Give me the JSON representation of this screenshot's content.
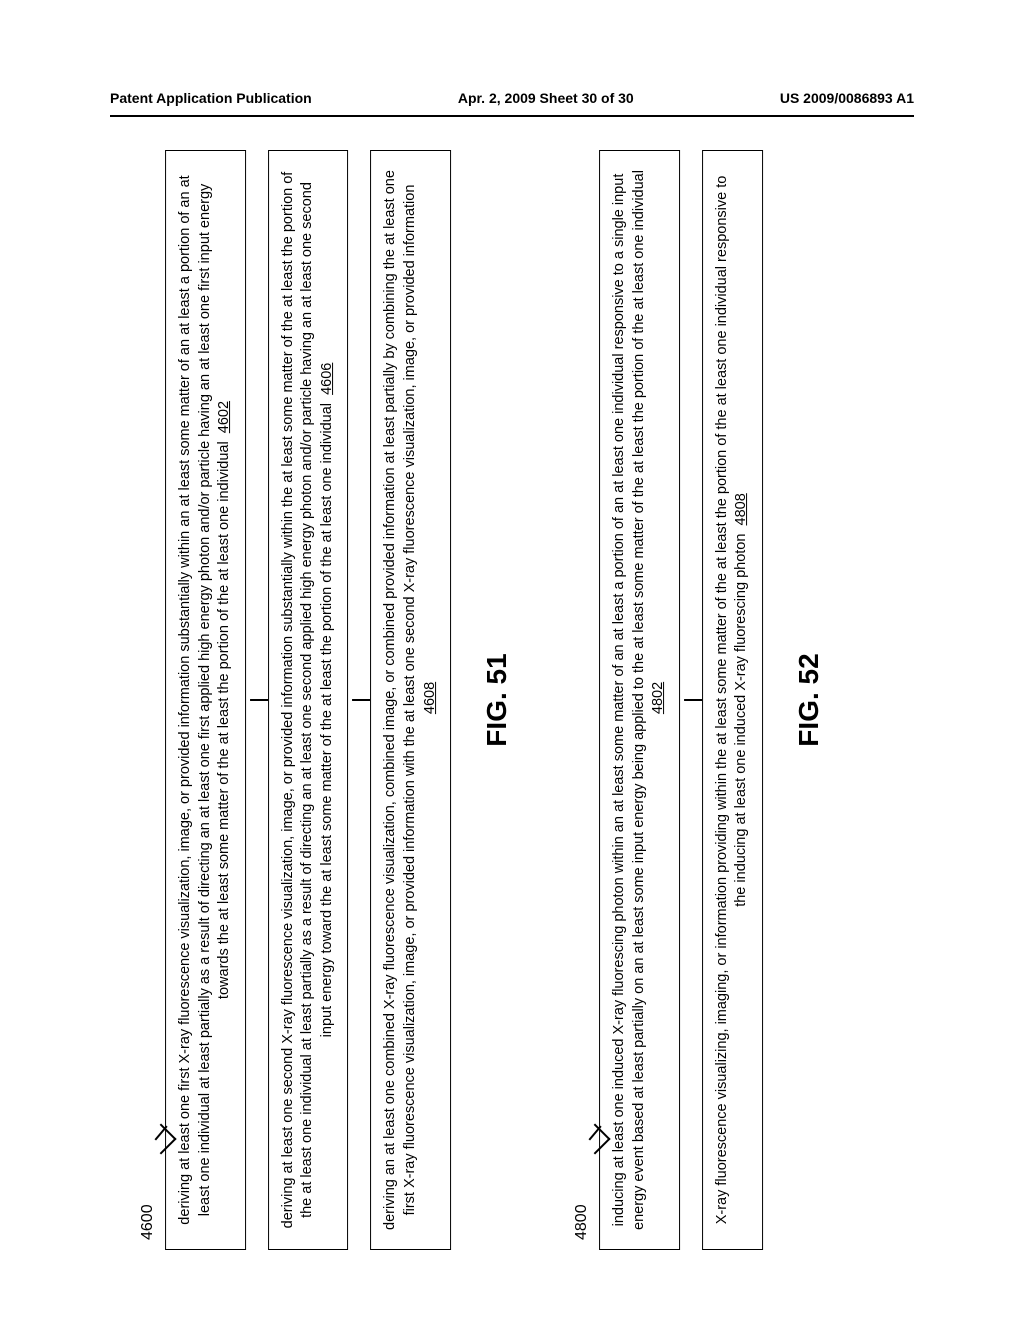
{
  "header": {
    "left": "Patent Application Publication",
    "center": "Apr. 2, 2009  Sheet 30 of 30",
    "right": "US 2009/0086893 A1"
  },
  "fig51": {
    "ref": "4600",
    "boxes": [
      {
        "text": "deriving at least one first X-ray fluorescence visualization, image, or provided information substantially within an at least some matter of an at least a portion of an at least one individual at least partially as a result of directing an at least one first applied high energy photon and/or particle having an at least one first input energy towards the at least some matter of the at least the portion of the at least one individual",
        "step": "4602"
      },
      {
        "text": "deriving at least one second X-ray fluorescence visualization, image, or provided information substantially within the at least some matter of the at least the portion of the at least one individual at least partially as a result of directing an at least one second applied high energy photon and/or particle having an at least one second input energy toward the at least some matter of the at least the portion of the at least one individual",
        "step": "4606"
      },
      {
        "text": "deriving an at least one combined X-ray fluorescence visualization, combined image, or combined provided information at least partially by combining the at least one first X-ray fluorescence visualization, image, or provided information with the at least one second X-ray fluorescence visualization, image, or provided information",
        "step": "4608"
      }
    ],
    "label": "FIG. 51"
  },
  "fig52": {
    "ref": "4800",
    "boxes": [
      {
        "text": "inducing at least one induced X-ray fluorescing photon within an at least some matter of an at least a portion of an at least one individual responsive to a single input energy event based at least partially on an at least some input energy being applied to the at least some matter of the at least the portion of the at least one individual",
        "step": "4802"
      },
      {
        "text": "X-ray fluorescence visualizing, imaging, or information providing within the at least some matter of the at least the portion of the at least one individual responsive to the inducing at least one induced X-ray fluorescing photon",
        "step": "4808"
      }
    ],
    "label": "FIG. 52"
  }
}
